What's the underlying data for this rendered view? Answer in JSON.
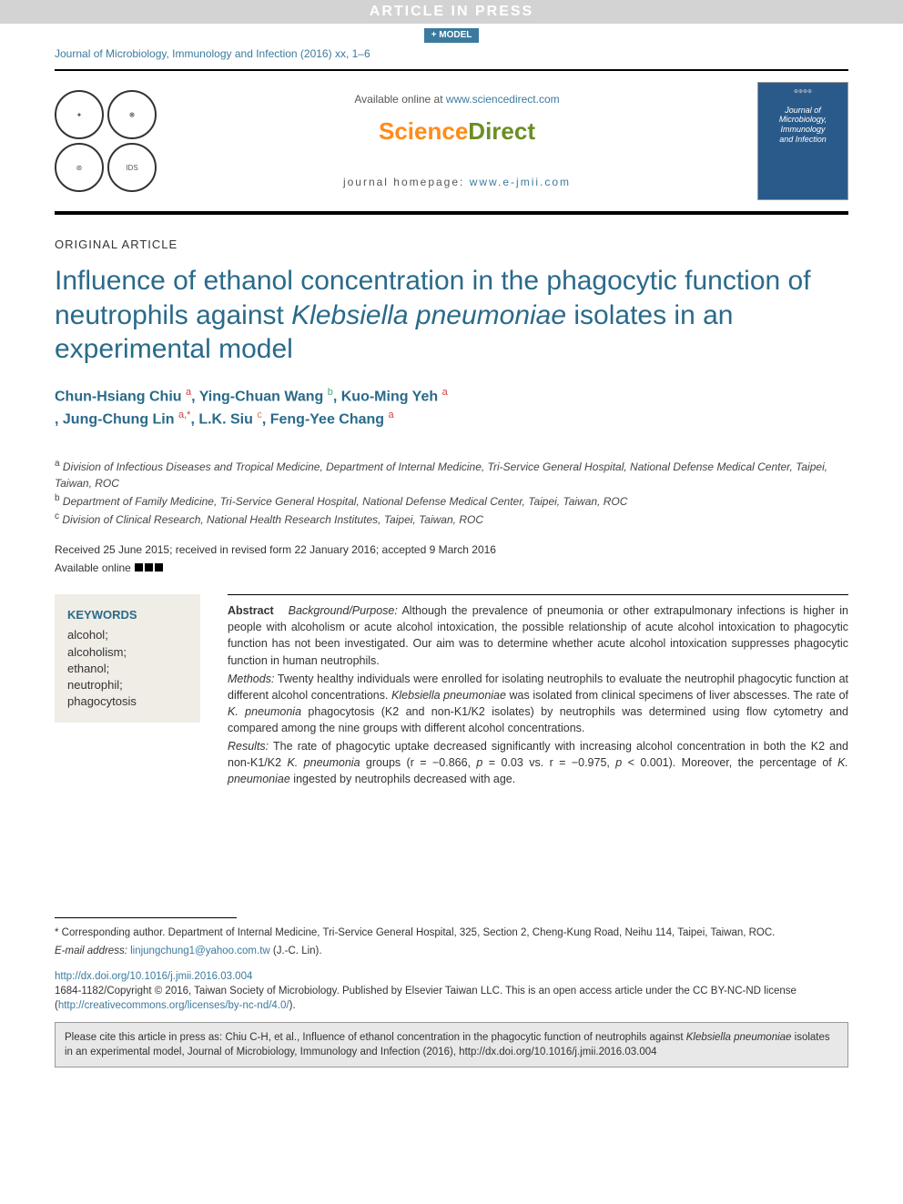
{
  "banner": {
    "text": "ARTICLE IN PRESS",
    "model": "+ MODEL"
  },
  "journal_ref": "Journal of Microbiology, Immunology and Infection (2016) xx, 1–6",
  "header": {
    "available_prefix": "Available online at ",
    "available_url": "www.sciencedirect.com",
    "sd_sci": "Science",
    "sd_dir": "Direct",
    "homepage_prefix": "journal homepage: ",
    "homepage_url": "www.e-jmii.com",
    "cover_top": "⊕⊕⊕⊕",
    "cover_title1": "Journal of",
    "cover_title2": "Microbiology,",
    "cover_title3": "Immunology",
    "cover_title4": "and Infection"
  },
  "article_type": "ORIGINAL ARTICLE",
  "title_part1": "Influence of ethanol concentration in the phagocytic function of neutrophils against ",
  "title_em": "Klebsiella pneumoniae",
  "title_part2": " isolates in an experimental model",
  "authors": [
    {
      "name": "Chun-Hsiang Chiu ",
      "sup": "a",
      "cls": "sup-a"
    },
    {
      "name": ", Ying-Chuan Wang ",
      "sup": "b",
      "cls": "sup-b"
    },
    {
      "name": ", Kuo-Ming Yeh ",
      "sup": "a",
      "cls": "sup-a"
    },
    {
      "name": ", Jung-Chung Lin ",
      "sup": "a,*",
      "cls": "sup-a"
    },
    {
      "name": ", L.K. Siu ",
      "sup": "c",
      "cls": "sup-c"
    },
    {
      "name": ", Feng-Yee Chang ",
      "sup": "a",
      "cls": "sup-a"
    }
  ],
  "affiliations": [
    {
      "sup": "a",
      "text": " Division of Infectious Diseases and Tropical Medicine, Department of Internal Medicine, Tri-Service General Hospital, National Defense Medical Center, Taipei, Taiwan, ROC"
    },
    {
      "sup": "b",
      "text": " Department of Family Medicine, Tri-Service General Hospital, National Defense Medical Center, Taipei, Taiwan, ROC"
    },
    {
      "sup": "c",
      "text": " Division of Clinical Research, National Health Research Institutes, Taipei, Taiwan, ROC"
    }
  ],
  "dates": "Received 25 June 2015; received in revised form 22 January 2016; accepted 9 March 2016",
  "avail_online_label": "Available online ",
  "keywords": {
    "heading": "KEYWORDS",
    "items": [
      "alcohol;",
      "alcoholism;",
      "ethanol;",
      "neutrophil;",
      "phagocytosis"
    ]
  },
  "abstract": {
    "label": "Abstract",
    "bg_head": "Background/Purpose:",
    "bg_text": " Although the prevalence of pneumonia or other extrapulmonary infections is higher in people with alcoholism or acute alcohol intoxication, the possible relationship of acute alcohol intoxication to phagocytic function has not been investigated. Our aim was to determine whether acute alcohol intoxication suppresses phagocytic function in human neutrophils.",
    "m_head": "Methods:",
    "m_text_1": " Twenty healthy individuals were enrolled for isolating neutrophils to evaluate the neutrophil phagocytic function at different alcohol concentrations. ",
    "m_em1": "Klebsiella pneumoniae",
    "m_text_2": " was isolated from clinical specimens of liver abscesses. The rate of ",
    "m_em2": "K. pneumonia",
    "m_text_3": " phagocytosis (K2 and non-K1/K2 isolates) by neutrophils was determined using flow cytometry and compared among the nine groups with different alcohol concentrations.",
    "r_head": "Results:",
    "r_text_1": " The rate of phagocytic uptake decreased significantly with increasing alcohol concentration in both the K2 and non-K1/K2 ",
    "r_em1": "K. pneumonia",
    "r_text_2": " groups (r = −0.866, ",
    "r_em2": "p",
    "r_text_3": " = 0.03 vs. r = −0.975, ",
    "r_em3": "p",
    "r_text_4": " < 0.001). Moreover, the percentage of ",
    "r_em4": "K. pneumoniae",
    "r_text_5": " ingested by neutrophils decreased with age."
  },
  "footnotes": {
    "corr": "* Corresponding author. Department of Internal Medicine, Tri-Service General Hospital, 325, Section 2, Cheng-Kung Road, Neihu 114, Taipei, Taiwan, ROC.",
    "email_label": "E-mail address: ",
    "email": "linjungchung1@yahoo.com.tw",
    "email_suffix": " (J.-C. Lin)."
  },
  "doi": {
    "url": "http://dx.doi.org/10.1016/j.jmii.2016.03.004",
    "copyright_1": "1684-1182/Copyright © 2016, Taiwan Society of Microbiology. Published by Elsevier Taiwan LLC. This is an open access article under the CC BY-NC-ND license (",
    "cc_url": "http://creativecommons.org/licenses/by-nc-nd/4.0/",
    "copyright_2": ")."
  },
  "cite": {
    "text_1": "Please cite this article in press as: Chiu C-H, et al., Influence of ethanol concentration in the phagocytic function of neutrophils against ",
    "em": "Klebsiella pneumoniae",
    "text_2": " isolates in an experimental model, Journal of Microbiology, Immunology and Infection (2016), http://dx.doi.org/10.1016/j.jmii.2016.03.004"
  },
  "colors": {
    "link": "#3b7a9e",
    "heading": "#2a6a8a",
    "banner_bg": "#d3d3d3",
    "cover_bg": "#2a5a8a",
    "kw_bg": "#f0ede6",
    "cite_bg": "#e8e8e8"
  }
}
